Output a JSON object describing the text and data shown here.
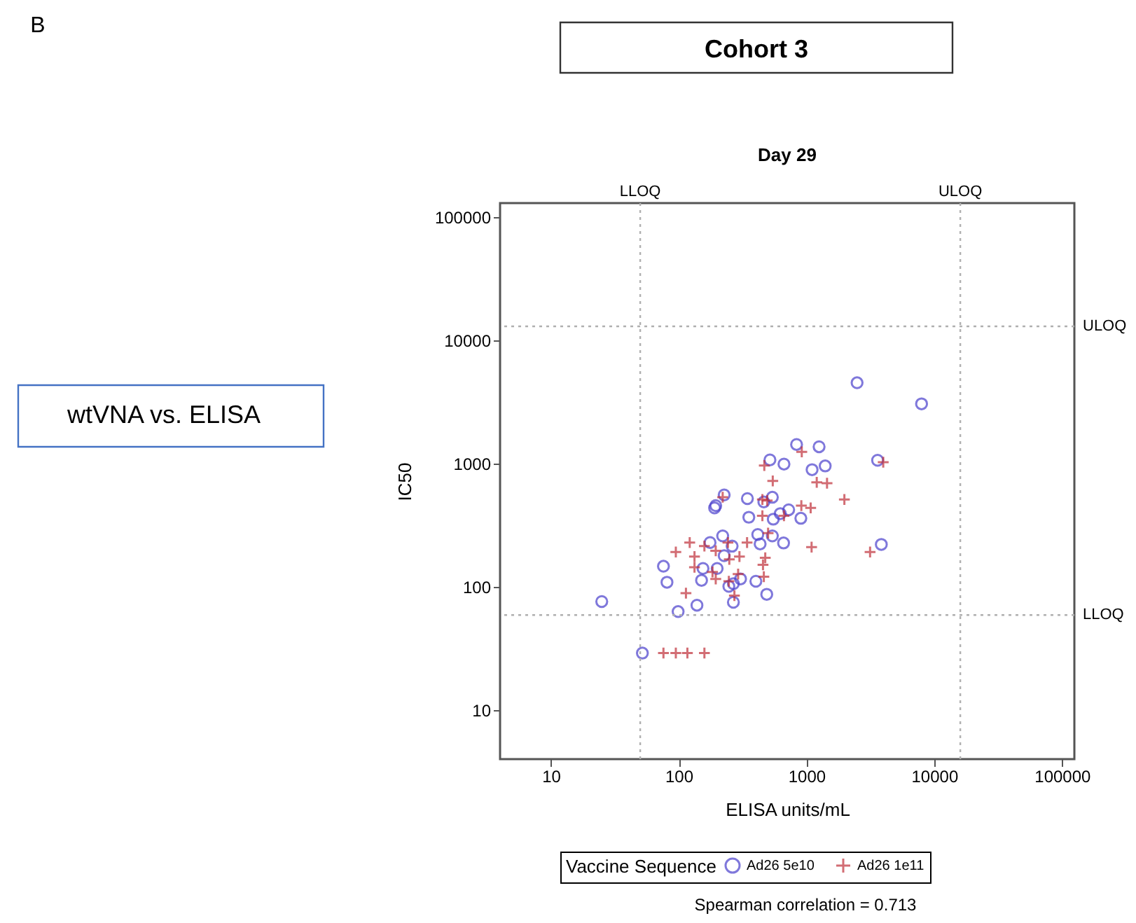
{
  "chart_data": {
    "type": "scatter",
    "title": "Day 29",
    "xlabel": "ELISA units/mL",
    "ylabel": "IC50",
    "legend_title": "Vaccine Sequence",
    "log": "xy",
    "grid": false,
    "legend": "bottom",
    "xlim": [
      4,
      125000
    ],
    "ylim": [
      4,
      130000
    ],
    "xticks": [
      10,
      100,
      1000,
      10000,
      100000
    ],
    "yticks": [
      10,
      100,
      1000,
      10000,
      100000
    ],
    "ref_lines": [
      {
        "axis": "x",
        "value": 50,
        "label": "LLOQ",
        "line_style": "dotted",
        "color": "#b0b0b0"
      },
      {
        "axis": "x",
        "value": 16000,
        "label": "ULOQ",
        "line_style": "dotted",
        "color": "#b0b0b0"
      },
      {
        "axis": "y",
        "value": 13000,
        "label": "ULOQ",
        "line_style": "dotted",
        "color": "#b0b0b0"
      },
      {
        "axis": "y",
        "value": 59,
        "label": "LLOQ",
        "line_style": "dotted",
        "color": "#b0b0b0"
      }
    ],
    "annotations": [
      "B",
      "Cohort 3",
      "wtVNA vs. ELISA",
      "Spearman correlation = 0.713"
    ],
    "series": [
      {
        "name": "Ad26 5e10",
        "color": "#4a3fcc",
        "marker": "circle",
        "x": [
          837,
          1256,
          518,
          667,
          1107,
          1402,
          3605,
          227,
          345,
          541,
          195,
          191,
          464,
          354,
          550,
          624,
          726,
          904,
          221,
          176,
          416,
          434,
          541,
          662,
          3855,
          262,
          227,
          76,
          155,
          200,
          81,
          151,
          268,
          305,
          402,
          247,
          489,
          268,
          25,
          99,
          139,
          52,
          2490,
          7960
        ],
        "values": [
          1430,
          1370,
          1072,
          991,
          893,
          957,
          1064,
          557,
          520,
          533,
          456,
          437,
          489,
          367,
          354,
          393,
          422,
          360,
          259,
          229,
          266,
          223,
          259,
          227,
          221,
          214,
          179,
          147,
          141,
          141,
          109,
          113,
          106,
          116,
          111,
          101,
          87,
          75,
          76,
          63,
          71,
          29,
          4530,
          3055
        ]
      },
      {
        "name": "Ad26 1e11",
        "color": "#c0303a",
        "marker": "cross",
        "x": [
          468,
          919,
          545,
          1204,
          1449,
          221,
          452,
          493,
          1981,
          452,
          667,
          912,
          1079,
          501,
          343,
          1097,
          3148,
          3990,
          122,
          95,
          133,
          133,
          195,
          243,
          299,
          249,
          184,
          195,
          292,
          476,
          457,
          464,
          114,
          273,
          76,
          95,
          117,
          159,
          247,
          159
        ],
        "values": [
          966,
          1244,
          724,
          705,
          693,
          533,
          511,
          502,
          511,
          377,
          377,
          456,
          437,
          273,
          229,
          210,
          192,
          1026,
          229,
          192,
          176,
          144,
          196,
          229,
          176,
          167,
          132,
          116,
          127,
          172,
          151,
          121,
          89,
          85,
          29,
          29,
          29,
          29,
          111,
          214
        ]
      }
    ]
  }
}
